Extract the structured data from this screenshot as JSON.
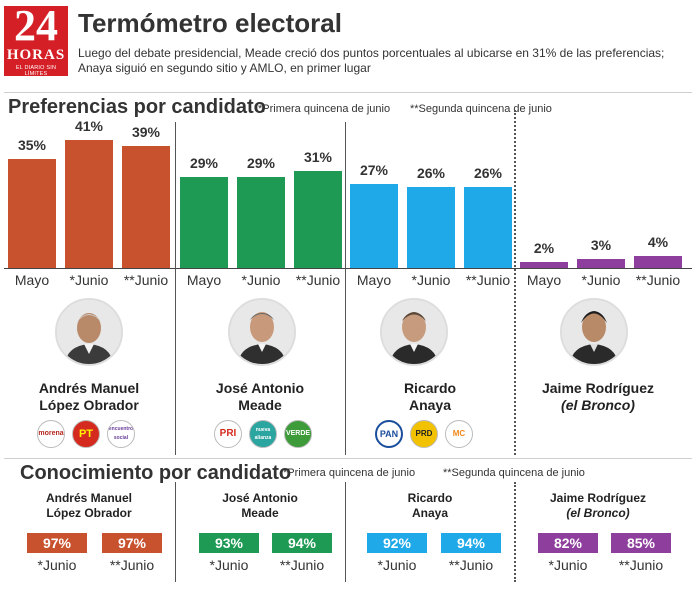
{
  "brand": {
    "number": "24",
    "word": "HORAS",
    "tagline": "EL DIARIO SIN LÍMITES"
  },
  "title": "Termómetro electoral",
  "subtitle_lines": [
    "Luego del debate presidencial, Meade creció dos puntos porcentuales al ubicarse en 31% de las preferencias;",
    "Anaya siguió en segundo sitio y AMLO, en primer lugar"
  ],
  "preferencias": {
    "title": "Preferencias por candidato",
    "note1": "*Primera quincena de junio",
    "note2": "**Segunda quincena de junio"
  },
  "conocimiento": {
    "title": "Conocimiento por candidato",
    "note1": "*Primera quincena de junio",
    "note2": "**Segunda quincena de junio"
  },
  "candidates": [
    {
      "name_l1": "Andrés Manuel",
      "name_l2": "López Obrador",
      "color": "#c8512e",
      "italic2": false,
      "parties": [
        "morena",
        "PT",
        "encuentro social"
      ],
      "party_colors": [
        "#b5261e",
        "#d52b1e",
        "#6a3d97"
      ],
      "conocimiento": [
        "97%",
        "97%"
      ]
    },
    {
      "name_l1": "José Antonio",
      "name_l2": "Meade",
      "color": "#1e9a54",
      "italic2": false,
      "parties": [
        "PRI",
        "nueva alianza",
        "VERDE"
      ],
      "party_colors": [
        "#1f8b3a",
        "#2aa5a0",
        "#3d9b3a"
      ],
      "conocimiento": [
        "93%",
        "94%"
      ]
    },
    {
      "name_l1": "Ricardo",
      "name_l2": "Anaya",
      "color": "#1fa9e8",
      "italic2": false,
      "parties": [
        "PAN",
        "PRD",
        "MC"
      ],
      "party_colors": [
        "#1a4e9c",
        "#f2c200",
        "#f08a1c"
      ],
      "conocimiento": [
        "92%",
        "94%"
      ]
    },
    {
      "name_l1": "Jaime Rodríguez",
      "name_l2": "(el Bronco)",
      "color": "#8e3e9c",
      "italic2": true,
      "parties": [],
      "party_colors": [],
      "conocimiento": [
        "82%",
        "85%"
      ]
    }
  ],
  "conocimiento_labels": [
    "*Junio",
    "**Junio"
  ],
  "chart_data": {
    "type": "bar",
    "title": "Preferencias por candidato",
    "categories": [
      "Mayo",
      "*Junio",
      "**Junio"
    ],
    "ylim": [
      0,
      45
    ],
    "value_unit": "%",
    "series": [
      {
        "name": "Andrés Manuel López Obrador",
        "values": [
          35,
          41,
          39
        ]
      },
      {
        "name": "José Antonio Meade",
        "values": [
          29,
          29,
          31
        ]
      },
      {
        "name": "Ricardo Anaya",
        "values": [
          27,
          26,
          26
        ]
      },
      {
        "name": "Jaime Rodríguez (el Bronco)",
        "values": [
          2,
          3,
          4
        ]
      }
    ]
  }
}
